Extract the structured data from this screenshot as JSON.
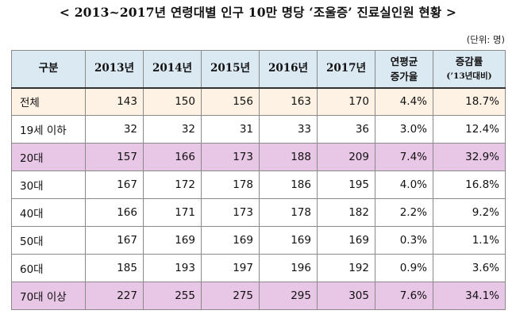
{
  "title": "< 2013~2017년 연령대별 인구 10만 명당 ‘조울증’ 진료실인원 현황 >",
  "unit": "(단위: 명)",
  "table": {
    "headers": {
      "category": "구분",
      "y2013": "2013년",
      "y2014": "2014년",
      "y2015": "2015년",
      "y2016": "2016년",
      "y2017": "2017년",
      "rate_line1": "연평균",
      "rate_line2": "증가율",
      "inc_line1": "증감률",
      "inc_line2": "(’13년대비)"
    },
    "rows": [
      {
        "label": "전체",
        "v2013": "143",
        "v2014": "150",
        "v2015": "156",
        "v2016": "163",
        "v2017": "170",
        "rate": "4.4%",
        "inc": "18.7%"
      },
      {
        "label": "19세 이하",
        "v2013": "32",
        "v2014": "32",
        "v2015": "31",
        "v2016": "33",
        "v2017": "36",
        "rate": "3.0%",
        "inc": "12.4%"
      },
      {
        "label": "20대",
        "v2013": "157",
        "v2014": "166",
        "v2015": "173",
        "v2016": "188",
        "v2017": "209",
        "rate": "7.4%",
        "inc": "32.9%"
      },
      {
        "label": "30대",
        "v2013": "167",
        "v2014": "172",
        "v2015": "178",
        "v2016": "186",
        "v2017": "195",
        "rate": "4.0%",
        "inc": "16.8%"
      },
      {
        "label": "40대",
        "v2013": "166",
        "v2014": "171",
        "v2015": "173",
        "v2016": "178",
        "v2017": "182",
        "rate": "2.2%",
        "inc": "9.2%"
      },
      {
        "label": "50대",
        "v2013": "167",
        "v2014": "169",
        "v2015": "169",
        "v2016": "169",
        "v2017": "169",
        "rate": "0.3%",
        "inc": "1.1%"
      },
      {
        "label": "60대",
        "v2013": "185",
        "v2014": "193",
        "v2015": "197",
        "v2016": "196",
        "v2017": "192",
        "rate": "0.9%",
        "inc": "3.6%"
      },
      {
        "label": "70대 이상",
        "v2013": "227",
        "v2014": "255",
        "v2015": "275",
        "v2016": "295",
        "v2017": "305",
        "rate": "7.6%",
        "inc": "34.1%"
      }
    ]
  },
  "colors": {
    "header_bg": "#dbe9f3",
    "total_row_bg": "#fdf2e4",
    "highlight_row_bg": "#e8c6e6"
  }
}
